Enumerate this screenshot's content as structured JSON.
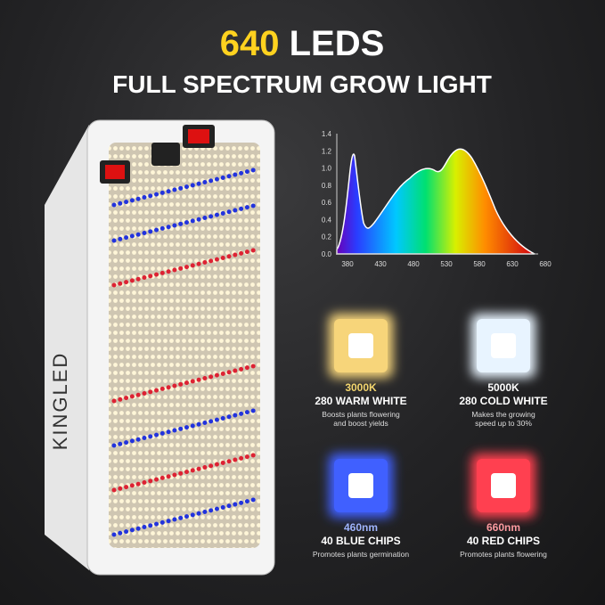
{
  "header": {
    "title_number": "640",
    "title_text": "LEDS",
    "subtitle": "FULL SPECTRUM GROW LIGHT"
  },
  "product": {
    "brand": "KINGLED"
  },
  "spectrum": {
    "yticks": [
      "0.0",
      "0.2",
      "0.4",
      "0.6",
      "0.8",
      "1.0",
      "1.2",
      "1.4"
    ],
    "xticks": [
      "380",
      "430",
      "480",
      "530",
      "580",
      "630",
      "680"
    ]
  },
  "features": [
    {
      "spec": "3000K",
      "name": "280 WARM WHITE",
      "description": [
        "Boosts plants flowering",
        "and boost yields"
      ]
    },
    {
      "spec": "5000K",
      "name": "280 COLD WHITE",
      "description": [
        "Makes the growing",
        "speed up to 30%"
      ]
    },
    {
      "spec": "460nm",
      "name": "40 BLUE CHIPS",
      "description": [
        "Promotes plants germination"
      ]
    },
    {
      "spec": "660nm",
      "name": "40 RED CHIPS",
      "description": [
        "Promotes plants flowering"
      ]
    }
  ]
}
